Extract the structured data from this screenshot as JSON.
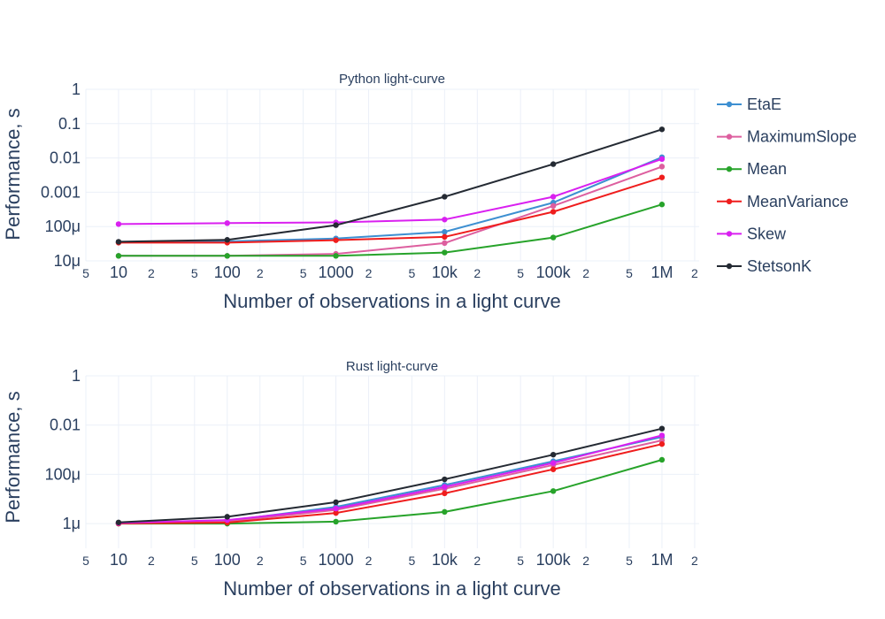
{
  "chart_data": [
    {
      "type": "line",
      "title": "Python light-curve",
      "xlabel": "Number of observations in a light curve",
      "ylabel": "Performance, s",
      "x_scale": "log",
      "y_scale": "log",
      "x_tick_labels": [
        {
          "value": 5,
          "label": "5"
        },
        {
          "value": 10,
          "label": "10"
        },
        {
          "value": 20,
          "label": "2"
        },
        {
          "value": 50,
          "label": "5"
        },
        {
          "value": 100,
          "label": "100"
        },
        {
          "value": 200,
          "label": "2"
        },
        {
          "value": 500,
          "label": "5"
        },
        {
          "value": 1000,
          "label": "1000"
        },
        {
          "value": 2000,
          "label": "2"
        },
        {
          "value": 5000,
          "label": "5"
        },
        {
          "value": 10000,
          "label": "10k"
        },
        {
          "value": 20000,
          "label": "2"
        },
        {
          "value": 50000,
          "label": "5"
        },
        {
          "value": 100000,
          "label": "100k"
        },
        {
          "value": 200000,
          "label": "2"
        },
        {
          "value": 500000,
          "label": "5"
        },
        {
          "value": 1000000,
          "label": "1M"
        },
        {
          "value": 2000000,
          "label": "2"
        }
      ],
      "y_tick_labels": [
        {
          "value": 1e-05,
          "label": "10μ"
        },
        {
          "value": 0.0001,
          "label": "100μ"
        },
        {
          "value": 0.001,
          "label": "0.001"
        },
        {
          "value": 0.01,
          "label": "0.01"
        },
        {
          "value": 0.1,
          "label": "0.1"
        },
        {
          "value": 1,
          "label": "1"
        }
      ],
      "xlim": [
        5,
        2200000
      ],
      "ylim": [
        1e-05,
        1
      ],
      "x": [
        10,
        100,
        1000,
        10000,
        100000,
        1000000
      ],
      "series": [
        {
          "name": "EtaE",
          "color": "#3d8fd1",
          "values": [
            3.5e-05,
            3.7e-05,
            4.5e-05,
            7e-05,
            0.0005,
            0.0105
          ]
        },
        {
          "name": "MaximumSlope",
          "color": "#dd5f9f",
          "values": [
            1.4e-05,
            1.4e-05,
            1.6e-05,
            3.3e-05,
            0.0004,
            0.0056
          ]
        },
        {
          "name": "Mean",
          "color": "#27a32a",
          "values": [
            1.4e-05,
            1.4e-05,
            1.4e-05,
            1.75e-05,
            4.8e-05,
            0.00044
          ]
        },
        {
          "name": "MeanVariance",
          "color": "#ef1d1d",
          "values": [
            3.4e-05,
            3.4e-05,
            4e-05,
            5e-05,
            0.00027,
            0.0027
          ]
        },
        {
          "name": "Skew",
          "color": "#d920f0",
          "values": [
            0.000118,
            0.000126,
            0.000132,
            0.00016,
            0.00074,
            0.0093
          ]
        },
        {
          "name": "StetsonK",
          "color": "#242a33",
          "values": [
            3.6e-05,
            4.1e-05,
            0.00011,
            0.00074,
            0.0066,
            0.068
          ]
        }
      ],
      "legend": "right"
    },
    {
      "type": "line",
      "title": "Rust light-curve",
      "xlabel": "Number of observations in a light curve",
      "ylabel": "Performance, s",
      "x_scale": "log",
      "y_scale": "log",
      "x_tick_labels": [
        {
          "value": 5,
          "label": "5"
        },
        {
          "value": 10,
          "label": "10"
        },
        {
          "value": 20,
          "label": "2"
        },
        {
          "value": 50,
          "label": "5"
        },
        {
          "value": 100,
          "label": "100"
        },
        {
          "value": 200,
          "label": "2"
        },
        {
          "value": 500,
          "label": "5"
        },
        {
          "value": 1000,
          "label": "1000"
        },
        {
          "value": 2000,
          "label": "2"
        },
        {
          "value": 5000,
          "label": "5"
        },
        {
          "value": 10000,
          "label": "10k"
        },
        {
          "value": 20000,
          "label": "2"
        },
        {
          "value": 50000,
          "label": "5"
        },
        {
          "value": 100000,
          "label": "100k"
        },
        {
          "value": 200000,
          "label": "2"
        },
        {
          "value": 500000,
          "label": "5"
        },
        {
          "value": 1000000,
          "label": "1M"
        },
        {
          "value": 2000000,
          "label": "2"
        }
      ],
      "y_tick_labels": [
        {
          "value": 1e-06,
          "label": "1μ"
        },
        {
          "value": 0.0001,
          "label": "100μ"
        },
        {
          "value": 0.01,
          "label": "0.01"
        },
        {
          "value": 1,
          "label": "1"
        }
      ],
      "xlim": [
        5,
        2200000
      ],
      "ylim": [
        1e-07,
        1
      ],
      "x": [
        10,
        100,
        1000,
        10000,
        100000,
        1000000
      ],
      "series": [
        {
          "name": "EtaE",
          "color": "#3d8fd1",
          "values": [
            1.05e-06,
            1.3e-06,
            4.8e-06,
            3.7e-05,
            0.00034,
            0.0033
          ]
        },
        {
          "name": "MaximumSlope",
          "color": "#dd5f9f",
          "values": [
            1.02e-06,
            1.2e-06,
            3.6e-06,
            2.6e-05,
            0.00024,
            0.0024
          ]
        },
        {
          "name": "Mean",
          "color": "#27a32a",
          "values": [
            1e-06,
            1e-06,
            1.2e-06,
            3e-06,
            2.1e-05,
            0.00039
          ]
        },
        {
          "name": "MeanVariance",
          "color": "#ef1d1d",
          "values": [
            1.01e-06,
            1.1e-06,
            2.7e-06,
            1.7e-05,
            0.00016,
            0.0017
          ]
        },
        {
          "name": "Skew",
          "color": "#d920f0",
          "values": [
            1.06e-06,
            1.4e-06,
            4.1e-06,
            3.1e-05,
            0.00029,
            0.0038
          ]
        },
        {
          "name": "StetsonK",
          "color": "#242a33",
          "values": [
            1.12e-06,
            1.9e-06,
            7.4e-06,
            6.3e-05,
            0.00063,
            0.0072
          ]
        }
      ],
      "legend": "none"
    }
  ]
}
